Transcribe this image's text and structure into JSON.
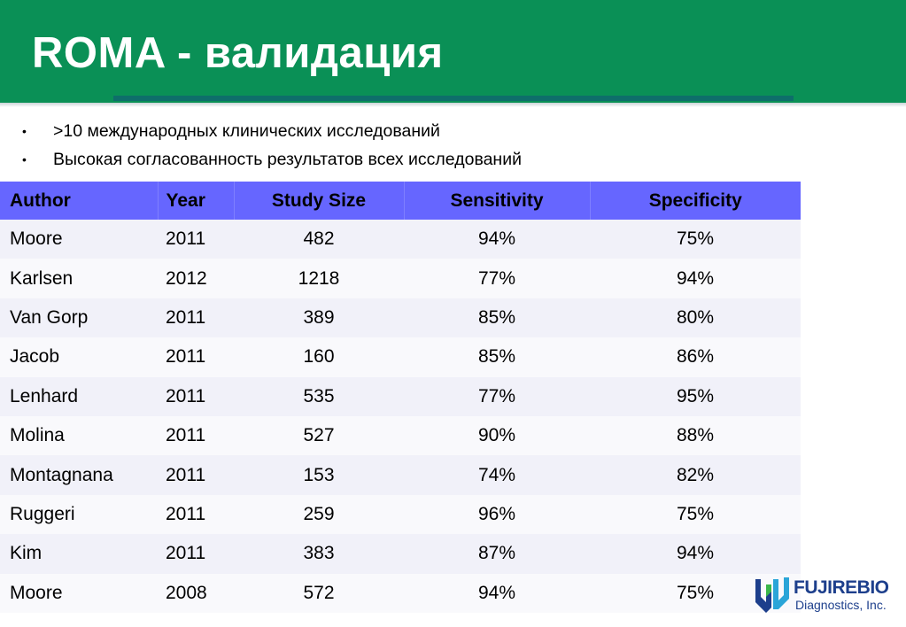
{
  "title": "ROMA - валидация",
  "bullets": [
    ">10 международных клинических исследований",
    "Высокая согласованность результатов всех исследований"
  ],
  "bullet_marker": "•",
  "table": {
    "headers": [
      "Author",
      "Year",
      "Study Size",
      "Sensitivity",
      "Specificity"
    ],
    "rows": [
      [
        "Moore",
        "2011",
        "482",
        "94%",
        "75%"
      ],
      [
        "Karlsen",
        "2012",
        "1218",
        "77%",
        "94%"
      ],
      [
        "Van Gorp",
        "2011",
        "389",
        "85%",
        "80%"
      ],
      [
        "Jacob",
        "2011",
        "160",
        "85%",
        "86%"
      ],
      [
        "Lenhard",
        "2011",
        "535",
        "77%",
        "95%"
      ],
      [
        "Molina",
        "2011",
        "527",
        "90%",
        "88%"
      ],
      [
        "Montagnana",
        "2011",
        "153",
        "74%",
        "82%"
      ],
      [
        "Ruggeri",
        "2011",
        "259",
        "96%",
        "75%"
      ],
      [
        "Kim",
        "2011",
        "383",
        "87%",
        "94%"
      ],
      [
        "Moore",
        "2008",
        "572",
        "94%",
        "75%"
      ]
    ]
  },
  "logo": {
    "name": "FUJIREBIO",
    "subtitle": "Diagnostics, Inc.",
    "icon": "fujirebio-logo-icon"
  },
  "colors": {
    "title_bar": "#0a9056",
    "table_header": "#6666ff",
    "logo_text": "#1d3f8c"
  }
}
